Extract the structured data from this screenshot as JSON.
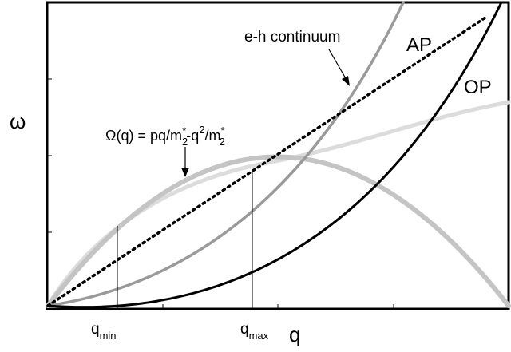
{
  "labels": {
    "y_axis": "ω",
    "x_axis": "q",
    "continuum": "e-h continuum",
    "ap": "AP",
    "op": "OP",
    "omega_formula": {
      "lhs": "Ω(q) = pq/m",
      "sub1": "2",
      "sup1": "*",
      "mid": "-q",
      "sup2": "2",
      "mid2": "/m",
      "sup3": "*",
      "sub3": "2"
    },
    "q_min": {
      "base": "q",
      "sub": "min"
    },
    "q_max": {
      "base": "q",
      "sub": "max"
    }
  },
  "colors": {
    "frame": "#000000",
    "op_curve": "#000000",
    "ap_curve": "#000000",
    "continuum_upper": "#9a9a9a",
    "omega_parabola": "#c4c4c4",
    "continuum_lower": "#dcdcdc"
  }
}
